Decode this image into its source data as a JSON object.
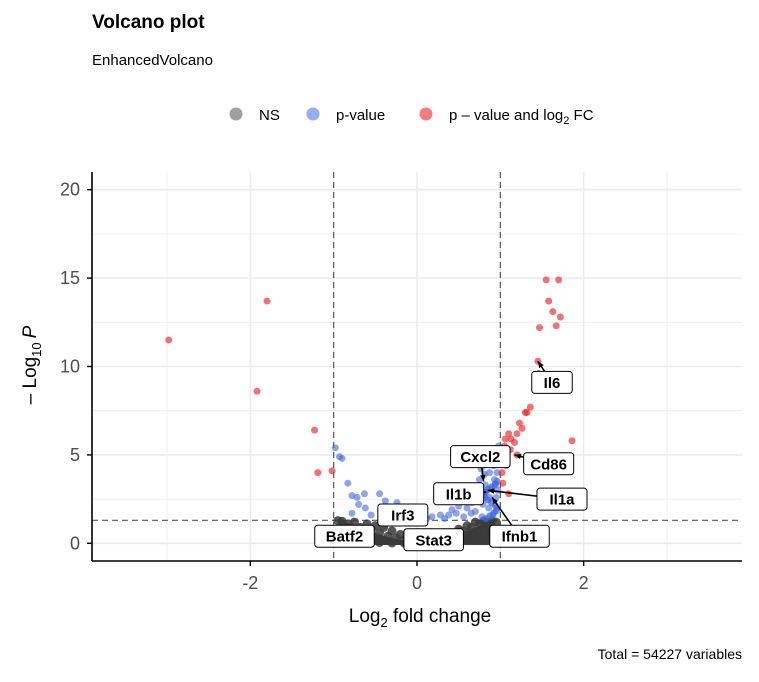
{
  "chart_data": {
    "type": "scatter",
    "title": "Volcano plot",
    "subtitle": "EnhancedVolcano",
    "caption": "Total = 54227 variables",
    "xlabel_main": "Log",
    "xlabel_sub": "2",
    "xlabel_rest": " fold change",
    "ylabel_pre": "– Log",
    "ylabel_sub": "10",
    "ylabel_post": "P",
    "xlim": [
      -3.9,
      3.9
    ],
    "ylim": [
      -1.0,
      21.0
    ],
    "x_ticks": [
      -2,
      0,
      2
    ],
    "x_tick_labels": [
      "-2",
      "0",
      "2"
    ],
    "y_ticks": [
      0,
      5,
      10,
      15,
      20
    ],
    "y_tick_labels": [
      "0",
      "5",
      "10",
      "15",
      "20"
    ],
    "grid": true,
    "fc_cutoff": 1.0,
    "p_cutoff_log10": 1.3,
    "legend": {
      "placement": "top",
      "entries": [
        {
          "label": "NS",
          "color": "#808080"
        },
        {
          "label": "p-value",
          "color": "#4169e1"
        },
        {
          "label_pre": "p – value and log",
          "label_sub": "2",
          "label_post": " FC",
          "color": "#e8262d"
        }
      ]
    },
    "colors": {
      "ns": "#3a3a3a",
      "p": "#4169e1",
      "pfc": "#e8262d"
    },
    "series": [
      {
        "name": "p – value and log2 FC",
        "points": [
          [
            -2.98,
            11.5
          ],
          [
            -1.8,
            13.7
          ],
          [
            -1.92,
            8.6
          ],
          [
            -1.23,
            6.4
          ],
          [
            -1.19,
            4.0
          ],
          [
            -1.02,
            4.1
          ],
          [
            1.55,
            14.9
          ],
          [
            1.7,
            14.9
          ],
          [
            1.58,
            13.7
          ],
          [
            1.63,
            13.1
          ],
          [
            1.47,
            12.2
          ],
          [
            1.67,
            12.3
          ],
          [
            1.72,
            12.8
          ],
          [
            1.45,
            10.3
          ],
          [
            1.46,
            9.6
          ],
          [
            1.42,
            9.0
          ],
          [
            1.47,
            8.7
          ],
          [
            1.36,
            7.7
          ],
          [
            1.3,
            7.4
          ],
          [
            1.32,
            7.4
          ],
          [
            1.23,
            6.8
          ],
          [
            1.26,
            6.5
          ],
          [
            1.2,
            6.2
          ],
          [
            1.1,
            6.2
          ],
          [
            1.13,
            5.9
          ],
          [
            1.06,
            5.9
          ],
          [
            1.17,
            5.7
          ],
          [
            1.05,
            5.5
          ],
          [
            1.12,
            5.3
          ],
          [
            1.2,
            5.0
          ],
          [
            1.07,
            4.4
          ],
          [
            1.02,
            4.0
          ],
          [
            1.86,
            5.8
          ],
          [
            1.1,
            2.8
          ],
          [
            1.03,
            3.4
          ]
        ]
      },
      {
        "name": "p-value",
        "points": [
          [
            -0.98,
            5.4
          ],
          [
            -0.93,
            4.9
          ],
          [
            -0.9,
            4.8
          ],
          [
            -0.83,
            3.4
          ],
          [
            -0.78,
            2.7
          ],
          [
            -0.72,
            2.6
          ],
          [
            -0.63,
            2.8
          ],
          [
            -0.7,
            2.2
          ],
          [
            -0.78,
            1.7
          ],
          [
            -0.62,
            2.0
          ],
          [
            -0.55,
            1.6
          ],
          [
            -0.45,
            2.8
          ],
          [
            -0.38,
            2.4
          ],
          [
            -0.24,
            2.3
          ],
          [
            -0.12,
            1.7
          ],
          [
            -0.02,
            1.5
          ],
          [
            0.12,
            1.4
          ],
          [
            0.18,
            1.5
          ],
          [
            0.28,
            1.6
          ],
          [
            0.33,
            1.4
          ],
          [
            0.38,
            1.6
          ],
          [
            0.42,
            1.9
          ],
          [
            0.47,
            1.7
          ],
          [
            0.5,
            2.1
          ],
          [
            0.54,
            2.5
          ],
          [
            0.58,
            2.4
          ],
          [
            0.6,
            2.0
          ],
          [
            0.63,
            2.6
          ],
          [
            0.66,
            2.3
          ],
          [
            0.68,
            3.0
          ],
          [
            0.71,
            2.8
          ],
          [
            0.73,
            3.2
          ],
          [
            0.75,
            3.6
          ],
          [
            0.77,
            4.2
          ],
          [
            0.79,
            4.5
          ],
          [
            0.81,
            3.9
          ],
          [
            0.82,
            3.3
          ],
          [
            0.84,
            4.8
          ],
          [
            0.85,
            5.2
          ],
          [
            0.87,
            4.0
          ],
          [
            0.88,
            3.1
          ],
          [
            0.9,
            5.0
          ],
          [
            0.92,
            4.4
          ],
          [
            0.93,
            3.6
          ],
          [
            0.95,
            2.6
          ],
          [
            0.96,
            4.0
          ],
          [
            0.97,
            3.0
          ],
          [
            0.98,
            5.5
          ],
          [
            0.99,
            4.9
          ],
          [
            0.79,
            2.2
          ],
          [
            0.7,
            1.8
          ],
          [
            0.86,
            2.0
          ],
          [
            0.91,
            1.6
          ],
          [
            0.56,
            1.5
          ],
          [
            0.65,
            1.7
          ],
          [
            0.78,
            1.5
          ],
          [
            0.87,
            2.6
          ],
          [
            0.94,
            3.3
          ],
          [
            0.76,
            2.6
          ],
          [
            0.83,
            2.9
          ]
        ]
      },
      {
        "name": "NS",
        "band_points": [
          [
            -0.9,
            1.25
          ],
          [
            -0.82,
            1.1
          ],
          [
            -0.75,
            1.2
          ],
          [
            -0.68,
            0.9
          ],
          [
            -0.6,
            1.1
          ],
          [
            -0.55,
            0.8
          ],
          [
            -0.5,
            1.0
          ],
          [
            -0.45,
            0.6
          ],
          [
            -0.4,
            0.9
          ],
          [
            -0.35,
            0.4
          ],
          [
            -0.3,
            0.7
          ],
          [
            -0.25,
            0.3
          ],
          [
            -0.2,
            0.5
          ],
          [
            -0.15,
            0.2
          ],
          [
            -0.1,
            0.35
          ],
          [
            -0.05,
            0.1
          ],
          [
            0.0,
            0.2
          ],
          [
            0.05,
            0.1
          ],
          [
            0.1,
            0.3
          ],
          [
            0.15,
            0.15
          ],
          [
            0.2,
            0.4
          ],
          [
            0.25,
            0.25
          ],
          [
            0.3,
            0.5
          ],
          [
            0.35,
            0.35
          ],
          [
            0.4,
            0.6
          ],
          [
            0.45,
            0.5
          ],
          [
            0.5,
            0.8
          ],
          [
            0.55,
            0.7
          ],
          [
            0.6,
            1.0
          ],
          [
            0.65,
            0.9
          ],
          [
            0.7,
            1.2
          ],
          [
            0.75,
            1.1
          ],
          [
            0.8,
            1.25
          ],
          [
            0.85,
            1.15
          ],
          [
            0.9,
            1.28
          ],
          [
            0.95,
            1.2
          ],
          [
            -0.95,
            1.28
          ],
          [
            -0.88,
            0.7
          ],
          [
            0.88,
            0.7
          ],
          [
            0.62,
            0.3
          ],
          [
            -0.62,
            0.3
          ],
          [
            0.45,
            0.05
          ],
          [
            -0.45,
            0.05
          ],
          [
            0.3,
            0.02
          ],
          [
            -0.3,
            0.02
          ],
          [
            0.15,
            0.0
          ],
          [
            -0.15,
            0.0
          ]
        ]
      }
    ],
    "annotations": [
      {
        "label": "Il6",
        "x": 1.45,
        "y": 10.3,
        "label_x": 1.62,
        "label_y": 9.1
      },
      {
        "label": "Cxcl2",
        "x": 0.8,
        "y": 3.5,
        "label_x": 0.76,
        "label_y": 4.9
      },
      {
        "label": "Cd86",
        "x": 1.17,
        "y": 5.0,
        "label_x": 1.58,
        "label_y": 4.5
      },
      {
        "label": "Il1b",
        "x": 0.83,
        "y": 2.9,
        "label_x": 0.5,
        "label_y": 2.8
      },
      {
        "label": "Il1a",
        "x": 0.85,
        "y": 3.0,
        "label_x": 1.74,
        "label_y": 2.5
      },
      {
        "label": "Irf3",
        "x": -0.28,
        "y": 1.05,
        "label_x": -0.17,
        "label_y": 1.6
      },
      {
        "label": "Batf2",
        "x": -0.65,
        "y": 0.6,
        "label_x": -0.87,
        "label_y": 0.4
      },
      {
        "label": "Stat3",
        "x": 0.1,
        "y": 0.6,
        "label_x": 0.2,
        "label_y": 0.2
      },
      {
        "label": "Ifnb1",
        "x": 0.9,
        "y": 2.6,
        "label_x": 1.23,
        "label_y": 0.4
      }
    ]
  }
}
